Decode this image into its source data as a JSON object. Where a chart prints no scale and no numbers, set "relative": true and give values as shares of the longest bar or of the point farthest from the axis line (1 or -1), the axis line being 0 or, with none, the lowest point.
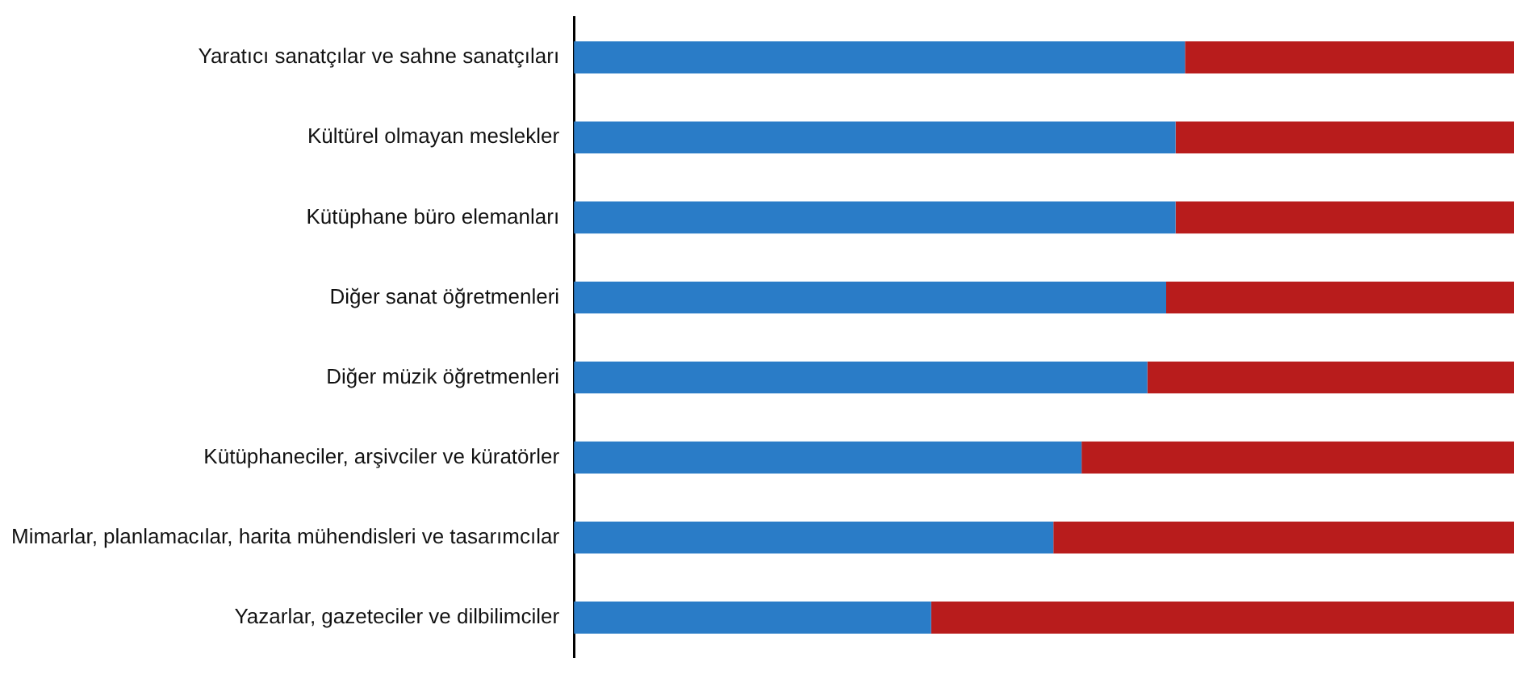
{
  "chart_data": {
    "type": "bar",
    "orientation": "horizontal",
    "stacked": true,
    "relative": true,
    "legend": false,
    "grid": false,
    "categories": [
      "Yaratıcı sanatçılar ve sahne sanatçıları",
      "Kültürel olmayan meslekler",
      "Kütüphane büro elemanları",
      "Diğer sanat öğretmenleri",
      "Diğer müzik öğretmenleri",
      "Kütüphaneciler, arşivciler ve küratörler",
      "Mimarlar, planlamacılar, harita mühendisleri ve tasarımcılar",
      "Yazarlar, gazeteciler ve dilbilimciler"
    ],
    "series": [
      {
        "color": "#2a7cc7",
        "values": [
          0.65,
          0.64,
          0.64,
          0.63,
          0.61,
          0.54,
          0.51,
          0.38
        ]
      },
      {
        "color": "#b81c1c",
        "values": [
          0.35,
          0.36,
          0.36,
          0.37,
          0.39,
          0.46,
          0.49,
          0.62
        ]
      }
    ]
  }
}
